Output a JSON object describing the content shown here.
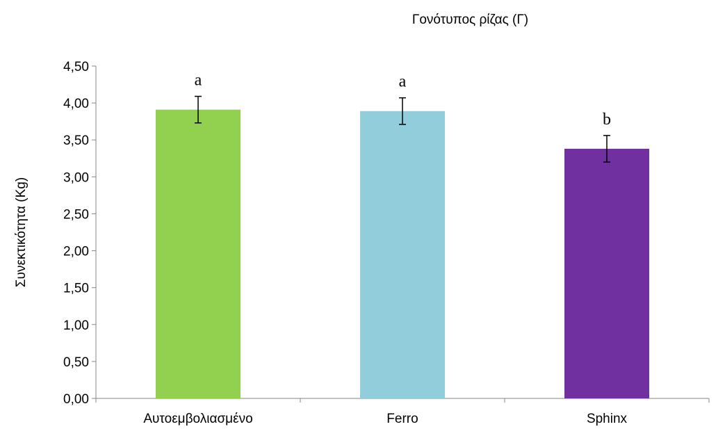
{
  "chart_data": {
    "type": "bar",
    "xlabel": "Γονότυπος ρίζας (Γ)",
    "ylabel": "Συνεκτικότητα (Kg)",
    "categories": [
      "Αυτοεμβολιασμένο",
      "Ferro",
      "Sphinx"
    ],
    "values": [
      3.91,
      3.89,
      3.38
    ],
    "errors": [
      0.18,
      0.18,
      0.18
    ],
    "annotations": [
      "a",
      "a",
      "b"
    ],
    "colors": [
      "#92D050",
      "#92CDDC",
      "#7030A0"
    ],
    "ylim": [
      0,
      4.5
    ],
    "yticks": [
      "0,00",
      "0,50",
      "1,00",
      "1,50",
      "2,00",
      "2,50",
      "3,00",
      "3,50",
      "4,00",
      "4,50"
    ],
    "ytick_values": [
      0,
      0.5,
      1,
      1.5,
      2,
      2.5,
      3,
      3.5,
      4,
      4.5
    ],
    "grid": false,
    "legend": "none"
  }
}
